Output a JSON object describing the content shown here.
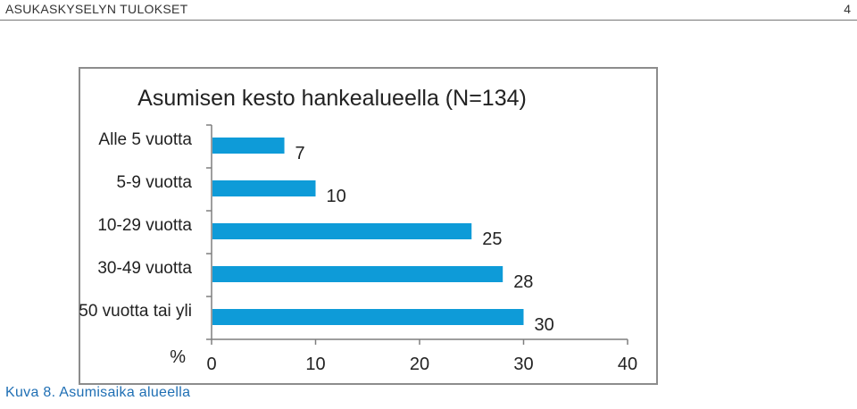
{
  "header": {
    "doc_title": "ASUKASKYSELYN TULOKSET",
    "page_number": "4"
  },
  "caption": "Kuva 8. Asumisaika alueella",
  "colors": {
    "bar": "#0e9bd8",
    "axis": "#7f7f7f",
    "frame": "#8c8c8c",
    "caption": "#1f6fb4"
  },
  "chart_data": {
    "type": "bar",
    "orientation": "horizontal",
    "title": "Asumisen kesto hankealueella (N=134)",
    "xlabel": "%",
    "ylabel": "",
    "categories": [
      "Alle 5 vuotta",
      "5-9 vuotta",
      "10-29 vuotta",
      "30-49 vuotta",
      "50 vuotta tai yli"
    ],
    "values": [
      7,
      10,
      25,
      28,
      30
    ],
    "data_labels": [
      "7",
      "10",
      "25",
      "28",
      "30"
    ],
    "xlim": [
      0,
      40
    ],
    "xticks": [
      0,
      10,
      20,
      30,
      40
    ],
    "xtick_labels": [
      "0",
      "10",
      "20",
      "30",
      "40"
    ],
    "grid": false,
    "legend": "none"
  }
}
